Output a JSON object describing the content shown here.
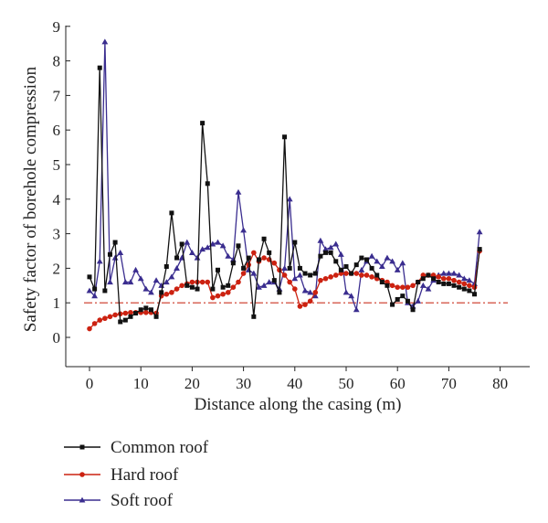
{
  "chart_data": {
    "type": "line",
    "title": "",
    "xlabel": "Distance along the casing (m)",
    "ylabel": "Safety factor of borehole compression",
    "xlim": [
      -5,
      82
    ],
    "ylim": [
      -1.4,
      9
    ],
    "x_ticks": [
      0,
      10,
      20,
      30,
      40,
      50,
      60,
      70,
      80
    ],
    "y_ticks": [
      0,
      1,
      2,
      3,
      4,
      5,
      6,
      7,
      8,
      9
    ],
    "grid": false,
    "legend_position": "bottom-left",
    "reference_line": {
      "y": 1,
      "color": "#cc3322",
      "style": "dash-dot"
    },
    "series": [
      {
        "name": "Common roof",
        "color": "#111111",
        "marker": "square",
        "points": [
          [
            0,
            1.75
          ],
          [
            1,
            1.4
          ],
          [
            2,
            7.8
          ],
          [
            3,
            1.35
          ],
          [
            4,
            2.4
          ],
          [
            5,
            2.75
          ],
          [
            6,
            0.45
          ],
          [
            7,
            0.5
          ],
          [
            8,
            0.6
          ],
          [
            9,
            0.7
          ],
          [
            10,
            0.8
          ],
          [
            11,
            0.85
          ],
          [
            12,
            0.8
          ],
          [
            13,
            0.6
          ],
          [
            14,
            1.3
          ],
          [
            15,
            2.05
          ],
          [
            16,
            3.6
          ],
          [
            17,
            2.3
          ],
          [
            18,
            2.7
          ],
          [
            19,
            1.5
          ],
          [
            20,
            1.45
          ],
          [
            21,
            1.4
          ],
          [
            22,
            6.2
          ],
          [
            23,
            4.45
          ],
          [
            24,
            1.4
          ],
          [
            25,
            1.95
          ],
          [
            26,
            1.45
          ],
          [
            27,
            1.5
          ],
          [
            28,
            2.15
          ],
          [
            29,
            2.65
          ],
          [
            30,
            2.0
          ],
          [
            31,
            2.3
          ],
          [
            32,
            0.6
          ],
          [
            33,
            2.25
          ],
          [
            34,
            2.85
          ],
          [
            35,
            2.45
          ],
          [
            36,
            1.65
          ],
          [
            37,
            1.3
          ],
          [
            38,
            5.8
          ],
          [
            39,
            2.0
          ],
          [
            40,
            2.75
          ],
          [
            41,
            2.0
          ],
          [
            42,
            1.85
          ],
          [
            43,
            1.8
          ],
          [
            44,
            1.85
          ],
          [
            45,
            2.35
          ],
          [
            46,
            2.45
          ],
          [
            47,
            2.45
          ],
          [
            48,
            2.2
          ],
          [
            49,
            1.95
          ],
          [
            50,
            2.05
          ],
          [
            51,
            1.85
          ],
          [
            52,
            2.1
          ],
          [
            53,
            2.3
          ],
          [
            54,
            2.25
          ],
          [
            55,
            2.0
          ],
          [
            56,
            1.8
          ],
          [
            57,
            1.6
          ],
          [
            58,
            1.5
          ],
          [
            59,
            0.95
          ],
          [
            60,
            1.1
          ],
          [
            61,
            1.2
          ],
          [
            62,
            1.05
          ],
          [
            63,
            0.8
          ],
          [
            64,
            1.6
          ],
          [
            65,
            1.7
          ],
          [
            66,
            1.8
          ],
          [
            67,
            1.7
          ],
          [
            68,
            1.6
          ],
          [
            69,
            1.55
          ],
          [
            70,
            1.55
          ],
          [
            71,
            1.5
          ],
          [
            72,
            1.45
          ],
          [
            73,
            1.4
          ],
          [
            74,
            1.35
          ],
          [
            75,
            1.25
          ],
          [
            76,
            2.55
          ]
        ]
      },
      {
        "name": "Hard roof",
        "color": "#cc2211",
        "marker": "circle",
        "points": [
          [
            0,
            0.25
          ],
          [
            1,
            0.4
          ],
          [
            2,
            0.5
          ],
          [
            3,
            0.55
          ],
          [
            4,
            0.6
          ],
          [
            5,
            0.65
          ],
          [
            6,
            0.68
          ],
          [
            7,
            0.7
          ],
          [
            8,
            0.72
          ],
          [
            9,
            0.72
          ],
          [
            10,
            0.72
          ],
          [
            11,
            0.72
          ],
          [
            12,
            0.72
          ],
          [
            13,
            0.7
          ],
          [
            14,
            1.2
          ],
          [
            15,
            1.25
          ],
          [
            16,
            1.3
          ],
          [
            17,
            1.4
          ],
          [
            18,
            1.5
          ],
          [
            19,
            1.55
          ],
          [
            20,
            1.6
          ],
          [
            21,
            1.6
          ],
          [
            22,
            1.6
          ],
          [
            23,
            1.6
          ],
          [
            24,
            1.15
          ],
          [
            25,
            1.2
          ],
          [
            26,
            1.25
          ],
          [
            27,
            1.3
          ],
          [
            28,
            1.45
          ],
          [
            29,
            1.6
          ],
          [
            30,
            1.85
          ],
          [
            31,
            2.1
          ],
          [
            32,
            2.45
          ],
          [
            33,
            2.2
          ],
          [
            34,
            2.3
          ],
          [
            35,
            2.25
          ],
          [
            36,
            2.15
          ],
          [
            37,
            1.95
          ],
          [
            38,
            1.8
          ],
          [
            39,
            1.6
          ],
          [
            40,
            1.4
          ],
          [
            41,
            0.9
          ],
          [
            42,
            0.95
          ],
          [
            43,
            1.05
          ],
          [
            44,
            1.3
          ],
          [
            45,
            1.65
          ],
          [
            46,
            1.7
          ],
          [
            47,
            1.75
          ],
          [
            48,
            1.8
          ],
          [
            49,
            1.85
          ],
          [
            50,
            1.85
          ],
          [
            51,
            1.85
          ],
          [
            52,
            1.85
          ],
          [
            53,
            1.8
          ],
          [
            54,
            1.8
          ],
          [
            55,
            1.75
          ],
          [
            56,
            1.7
          ],
          [
            57,
            1.65
          ],
          [
            58,
            1.6
          ],
          [
            59,
            1.5
          ],
          [
            60,
            1.45
          ],
          [
            61,
            1.45
          ],
          [
            62,
            1.45
          ],
          [
            63,
            1.5
          ],
          [
            64,
            1.6
          ],
          [
            65,
            1.8
          ],
          [
            66,
            1.8
          ],
          [
            67,
            1.8
          ],
          [
            68,
            1.75
          ],
          [
            69,
            1.7
          ],
          [
            70,
            1.7
          ],
          [
            71,
            1.65
          ],
          [
            72,
            1.6
          ],
          [
            73,
            1.55
          ],
          [
            74,
            1.5
          ],
          [
            75,
            1.45
          ],
          [
            76,
            2.5
          ]
        ]
      },
      {
        "name": "Soft roof",
        "color": "#3a2d8f",
        "marker": "triangle",
        "points": [
          [
            0,
            1.35
          ],
          [
            1,
            1.2
          ],
          [
            2,
            2.2
          ],
          [
            3,
            8.55
          ],
          [
            4,
            1.6
          ],
          [
            5,
            2.3
          ],
          [
            6,
            2.45
          ],
          [
            7,
            1.6
          ],
          [
            8,
            1.6
          ],
          [
            9,
            1.95
          ],
          [
            10,
            1.7
          ],
          [
            11,
            1.4
          ],
          [
            12,
            1.3
          ],
          [
            13,
            1.65
          ],
          [
            14,
            1.5
          ],
          [
            15,
            1.6
          ],
          [
            16,
            1.75
          ],
          [
            17,
            2.0
          ],
          [
            18,
            2.3
          ],
          [
            19,
            2.75
          ],
          [
            20,
            2.45
          ],
          [
            21,
            2.3
          ],
          [
            22,
            2.55
          ],
          [
            23,
            2.6
          ],
          [
            24,
            2.7
          ],
          [
            25,
            2.75
          ],
          [
            26,
            2.65
          ],
          [
            27,
            2.35
          ],
          [
            28,
            2.25
          ],
          [
            29,
            4.2
          ],
          [
            30,
            3.1
          ],
          [
            31,
            1.95
          ],
          [
            32,
            1.85
          ],
          [
            33,
            1.45
          ],
          [
            34,
            1.5
          ],
          [
            35,
            1.6
          ],
          [
            36,
            1.6
          ],
          [
            37,
            1.4
          ],
          [
            38,
            2.0
          ],
          [
            39,
            4.0
          ],
          [
            40,
            1.7
          ],
          [
            41,
            1.8
          ],
          [
            42,
            1.35
          ],
          [
            43,
            1.3
          ],
          [
            44,
            1.2
          ],
          [
            45,
            2.8
          ],
          [
            46,
            2.55
          ],
          [
            47,
            2.6
          ],
          [
            48,
            2.7
          ],
          [
            49,
            2.4
          ],
          [
            50,
            1.3
          ],
          [
            51,
            1.2
          ],
          [
            52,
            0.8
          ],
          [
            53,
            1.95
          ],
          [
            54,
            2.2
          ],
          [
            55,
            2.35
          ],
          [
            56,
            2.2
          ],
          [
            57,
            2.05
          ],
          [
            58,
            2.3
          ],
          [
            59,
            2.2
          ],
          [
            60,
            1.95
          ],
          [
            61,
            2.15
          ],
          [
            62,
            1.0
          ],
          [
            63,
            0.9
          ],
          [
            64,
            1.05
          ],
          [
            65,
            1.5
          ],
          [
            66,
            1.4
          ],
          [
            67,
            1.65
          ],
          [
            68,
            1.8
          ],
          [
            69,
            1.85
          ],
          [
            70,
            1.85
          ],
          [
            71,
            1.85
          ],
          [
            72,
            1.8
          ],
          [
            73,
            1.7
          ],
          [
            74,
            1.65
          ],
          [
            75,
            1.55
          ],
          [
            76,
            3.05
          ]
        ]
      }
    ]
  }
}
